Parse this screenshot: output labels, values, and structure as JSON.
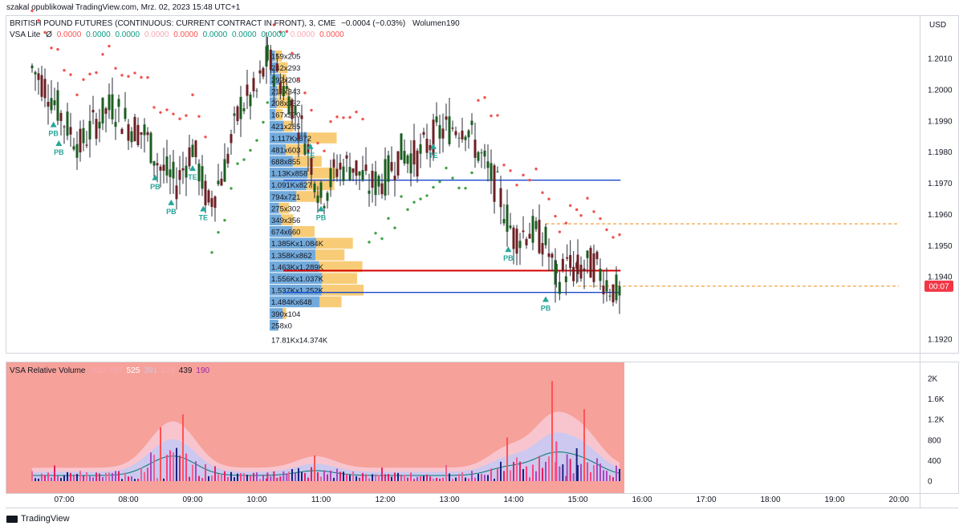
{
  "header": {
    "publisher_line": "szakal opublikował TradingView.com, Mrz. 02, 2023 15:48 UTC+1",
    "symbol_title": "BRITISH POUND FUTURES (CONTINUOUS: CURRENT CONTRACT IN FRONT), 3, CME",
    "change": "−0.0004 (−0.03%)",
    "volume_label": "Wolumen190",
    "indicator_name": "VSA Lite",
    "indicator_symbol": "Ø",
    "indicator_values": [
      {
        "text": "0.0000",
        "color": "#ff5252"
      },
      {
        "text": "0.0000",
        "color": "#089981"
      },
      {
        "text": "0.0000",
        "color": "#089981"
      },
      {
        "text": "0.0000",
        "color": "#f7a9b5"
      },
      {
        "text": "0.0000",
        "color": "#ff5252"
      },
      {
        "text": "0.0000",
        "color": "#089981"
      },
      {
        "text": "0.0000",
        "color": "#089981"
      },
      {
        "text": "0.0000",
        "color": "#089981"
      },
      {
        "text": "0.0000",
        "color": "#f7a9b5"
      },
      {
        "text": "0.0000",
        "color": "#ff5252"
      }
    ],
    "currency": "USD",
    "subpanel_title": "VSA Relative Volume",
    "subpanel_values": [
      {
        "text": "920",
        "color": "#f7a9b5"
      },
      {
        "text": "787",
        "color": "#f7a9b5"
      },
      {
        "text": "525",
        "color": "#ffffff"
      },
      {
        "text": "391",
        "color": "#c5cae9"
      },
      {
        "text": "129",
        "color": "#f7a9b5"
      },
      {
        "text": "439",
        "color": "#131722"
      },
      {
        "text": "190",
        "color": "#9c27b0"
      }
    ],
    "current_price_tag": "00:07",
    "footer_brand": "TradingView"
  },
  "chart_data": [
    {
      "type": "candlestick",
      "title": "BRITISH POUND FUTURES (CONTINUOUS: CURRENT CONTRACT IN FRONT), 3, CME",
      "x_tick_labels": [
        "07:00",
        "08:00",
        "09:00",
        "10:00",
        "11:00",
        "12:00",
        "13:00",
        "14:00",
        "15:00",
        "16:00",
        "17:00",
        "18:00",
        "19:00",
        "20:00"
      ],
      "y_tick_labels": [
        "1.2010",
        "1.2000",
        "1.1990",
        "1.1980",
        "1.1970",
        "1.1960",
        "1.1950",
        "1.1940",
        "1.1920"
      ],
      "ylim": [
        1.1913,
        1.2019
      ],
      "close_path": [
        {
          "t": "06:30",
          "p": 1.2007
        },
        {
          "t": "06:45",
          "p": 1.2
        },
        {
          "t": "07:00",
          "p": 1.199
        },
        {
          "t": "07:15",
          "p": 1.1982
        },
        {
          "t": "07:30",
          "p": 1.199
        },
        {
          "t": "07:45",
          "p": 1.1995
        },
        {
          "t": "08:00",
          "p": 1.1989
        },
        {
          "t": "08:15",
          "p": 1.1986
        },
        {
          "t": "08:30",
          "p": 1.1975
        },
        {
          "t": "08:45",
          "p": 1.197
        },
        {
          "t": "09:00",
          "p": 1.1982
        },
        {
          "t": "09:15",
          "p": 1.1963
        },
        {
          "t": "09:30",
          "p": 1.1975
        },
        {
          "t": "09:45",
          "p": 1.1995
        },
        {
          "t": "10:00",
          "p": 1.1999
        },
        {
          "t": "10:10",
          "p": 1.201
        },
        {
          "t": "10:30",
          "p": 1.1998
        },
        {
          "t": "10:45",
          "p": 1.1985
        },
        {
          "t": "11:00",
          "p": 1.1965
        },
        {
          "t": "11:15",
          "p": 1.1975
        },
        {
          "t": "11:30",
          "p": 1.1976
        },
        {
          "t": "11:45",
          "p": 1.1969
        },
        {
          "t": "12:00",
          "p": 1.1972
        },
        {
          "t": "12:15",
          "p": 1.198
        },
        {
          "t": "12:30",
          "p": 1.1978
        },
        {
          "t": "12:45",
          "p": 1.1985
        },
        {
          "t": "13:00",
          "p": 1.1988
        },
        {
          "t": "13:15",
          "p": 1.1989
        },
        {
          "t": "13:30",
          "p": 1.1978
        },
        {
          "t": "13:45",
          "p": 1.1968
        },
        {
          "t": "14:00",
          "p": 1.1953
        },
        {
          "t": "14:15",
          "p": 1.1955
        },
        {
          "t": "14:30",
          "p": 1.1951
        },
        {
          "t": "14:40",
          "p": 1.1939
        },
        {
          "t": "14:50",
          "p": 1.1943
        },
        {
          "t": "15:00",
          "p": 1.1942
        },
        {
          "t": "15:15",
          "p": 1.1944
        },
        {
          "t": "15:30",
          "p": 1.1937
        },
        {
          "t": "15:40",
          "p": 1.1934
        }
      ],
      "markers": [
        {
          "text": "PB",
          "t": "06:50",
          "p": 1.1989,
          "dir": "up"
        },
        {
          "text": "PB",
          "t": "06:55",
          "p": 1.1983,
          "dir": "up"
        },
        {
          "text": "PB",
          "t": "08:25",
          "p": 1.1972,
          "dir": "up"
        },
        {
          "text": "PB",
          "t": "08:40",
          "p": 1.1964,
          "dir": "up"
        },
        {
          "text": "TE",
          "t": "09:00",
          "p": 1.1975,
          "dir": "up"
        },
        {
          "text": "TE",
          "t": "09:10",
          "p": 1.1962,
          "dir": "up"
        },
        {
          "text": "TE",
          "t": "10:50",
          "p": 1.1982,
          "dir": "up"
        },
        {
          "text": "PB",
          "t": "11:00",
          "p": 1.1962,
          "dir": "up"
        },
        {
          "text": "TE",
          "t": "12:45",
          "p": 1.1982,
          "dir": "up"
        },
        {
          "text": "PB",
          "t": "13:55",
          "p": 1.1949,
          "dir": "up"
        },
        {
          "text": "PB",
          "t": "14:30",
          "p": 1.1933,
          "dir": "up"
        }
      ],
      "horizontal_lines": [
        {
          "price": 1.1971,
          "from": "10:25",
          "to": "15:40",
          "color": "#1848cc"
        },
        {
          "price": 1.1935,
          "from": "10:25",
          "to": "15:40",
          "color": "#1848cc"
        },
        {
          "price": 1.1942,
          "from": "10:25",
          "to": "15:40",
          "color": "#d50000"
        },
        {
          "price": 1.1957,
          "from": "14:30",
          "to": "20:00",
          "color": "#f0a040",
          "dashed": true
        },
        {
          "price": 1.1937,
          "from": "15:00",
          "to": "20:00",
          "color": "#f0a040",
          "dashed": true
        }
      ],
      "volume_profile": [
        {
          "label": "159x205",
          "up": 159,
          "down": 205
        },
        {
          "label": "242x293",
          "up": 242,
          "down": 293
        },
        {
          "label": "292x208",
          "up": 292,
          "down": 208
        },
        {
          "label": "219x343",
          "up": 219,
          "down": 343
        },
        {
          "label": "208x432",
          "up": 208,
          "down": 432
        },
        {
          "label": "167x220",
          "up": 167,
          "down": 220
        },
        {
          "label": "421x285",
          "up": 421,
          "down": 285
        },
        {
          "label": "1.117Kx872",
          "up": 1117,
          "down": 872
        },
        {
          "label": "481x603",
          "up": 481,
          "down": 603
        },
        {
          "label": "688x855",
          "up": 688,
          "down": 855
        },
        {
          "label": "1.13Kx858",
          "up": 1130,
          "down": 858
        },
        {
          "label": "1.091Kx827",
          "up": 1091,
          "down": 827
        },
        {
          "label": "794x721",
          "up": 794,
          "down": 721
        },
        {
          "label": "275x302",
          "up": 275,
          "down": 302
        },
        {
          "label": "349x356",
          "up": 349,
          "down": 356
        },
        {
          "label": "674x660",
          "up": 674,
          "down": 660
        },
        {
          "label": "1.385Kx1.084K",
          "up": 1385,
          "down": 1084
        },
        {
          "label": "1.358Kx862",
          "up": 1358,
          "down": 862
        },
        {
          "label": "1.463Kx1.289K",
          "up": 1463,
          "down": 1289
        },
        {
          "label": "1.556Kx1.037K",
          "up": 1556,
          "down": 1037
        },
        {
          "label": "1.537Kx1.252K",
          "up": 1537,
          "down": 1252
        },
        {
          "label": "1.484Kx648",
          "up": 1484,
          "down": 648
        },
        {
          "label": "390x104",
          "up": 390,
          "down": 104
        },
        {
          "label": "258x0",
          "up": 258,
          "down": 0
        }
      ],
      "volume_profile_total": "17.81Kx14.374K"
    },
    {
      "type": "bar",
      "title": "VSA Relative Volume",
      "y_tick_labels": [
        "2K",
        "1.6K",
        "1.2K",
        "800",
        "400",
        "0"
      ],
      "ylim": [
        0,
        2100
      ],
      "spikes": [
        {
          "t": "08:30",
          "v": 1050
        },
        {
          "t": "08:50",
          "v": 1300
        },
        {
          "t": "10:55",
          "v": 500
        },
        {
          "t": "13:55",
          "v": 850
        },
        {
          "t": "14:35",
          "v": 1950
        },
        {
          "t": "15:05",
          "v": 1400
        }
      ]
    }
  ]
}
